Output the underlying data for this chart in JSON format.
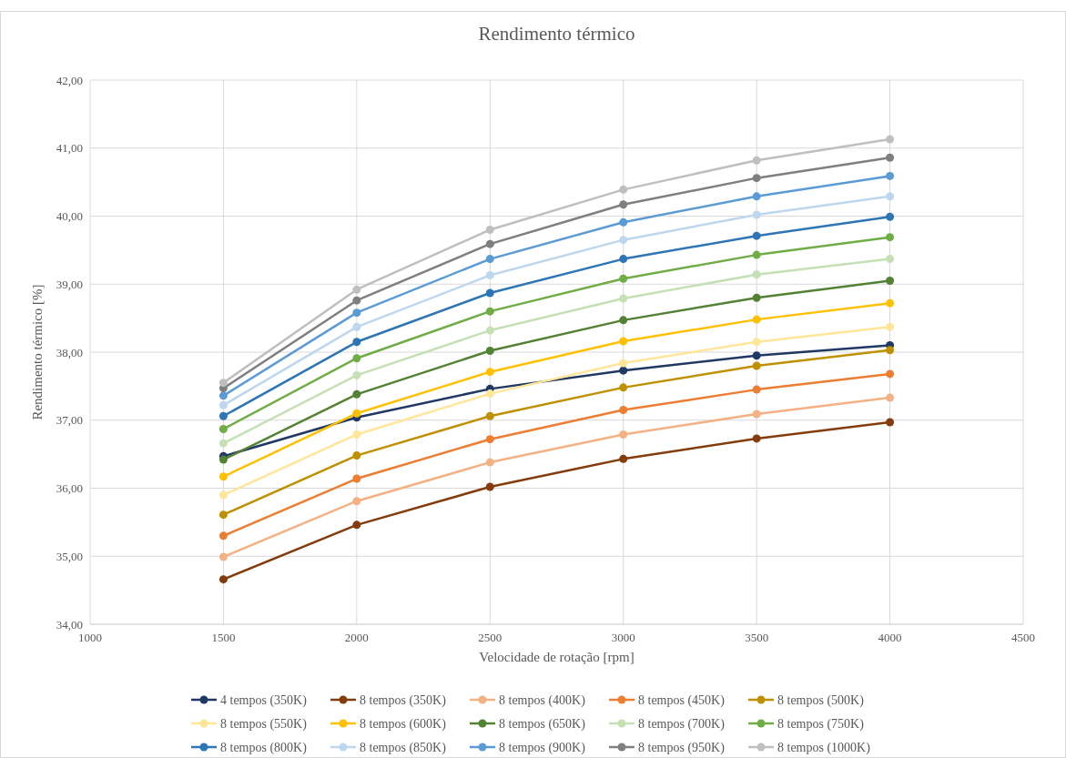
{
  "chart_data": {
    "type": "line",
    "title": "Rendimento térmico",
    "xlabel": "Velocidade de rotação [rpm]",
    "ylabel": "Rendimento térmico [%]",
    "x": [
      1500,
      2000,
      2500,
      3000,
      3500,
      4000
    ],
    "xlim": [
      1000,
      4500
    ],
    "xticks": [
      1000,
      1500,
      2000,
      2500,
      3000,
      3500,
      4000,
      4500
    ],
    "ylim": [
      34,
      42
    ],
    "yticks": [
      {
        "value": 34,
        "label": "34,00"
      },
      {
        "value": 35,
        "label": "35,00"
      },
      {
        "value": 36,
        "label": "36,00"
      },
      {
        "value": 37,
        "label": "37,00"
      },
      {
        "value": 38,
        "label": "38,00"
      },
      {
        "value": 39,
        "label": "39,00"
      },
      {
        "value": 40,
        "label": "40,00"
      },
      {
        "value": 41,
        "label": "41,00"
      },
      {
        "value": 42,
        "label": "42,00"
      }
    ],
    "grid": true,
    "legend": "bottom",
    "marker": "circle",
    "line_style": "solid",
    "series": [
      {
        "name": "4 tempos (350K)",
        "color": "#203864",
        "values": [
          36.47,
          37.04,
          37.46,
          37.73,
          37.95,
          38.1
        ]
      },
      {
        "name": "8 tempos (350K)",
        "color": "#843c0c",
        "values": [
          34.66,
          35.46,
          36.02,
          36.43,
          36.73,
          36.97
        ]
      },
      {
        "name": "8 tempos (400K)",
        "color": "#f4b183",
        "values": [
          34.99,
          35.81,
          36.38,
          36.79,
          37.09,
          37.33
        ]
      },
      {
        "name": "8 tempos (450K)",
        "color": "#ed7d31",
        "values": [
          35.3,
          36.14,
          36.72,
          37.15,
          37.45,
          37.68
        ]
      },
      {
        "name": "8 tempos (500K)",
        "color": "#bf9000",
        "values": [
          35.61,
          36.48,
          37.06,
          37.48,
          37.8,
          38.03
        ]
      },
      {
        "name": "8 tempos (550K)",
        "color": "#ffe699",
        "values": [
          35.9,
          36.79,
          37.39,
          37.84,
          38.15,
          38.37
        ]
      },
      {
        "name": "8 tempos (600K)",
        "color": "#ffc000",
        "values": [
          36.17,
          37.1,
          37.71,
          38.16,
          38.48,
          38.72
        ]
      },
      {
        "name": "8 tempos (650K)",
        "color": "#548235",
        "values": [
          36.42,
          37.38,
          38.02,
          38.47,
          38.8,
          39.05
        ]
      },
      {
        "name": "8 tempos (700K)",
        "color": "#c5e0b4",
        "values": [
          36.66,
          37.66,
          38.32,
          38.79,
          39.14,
          39.37
        ]
      },
      {
        "name": "8 tempos (750K)",
        "color": "#70ad47",
        "values": [
          36.87,
          37.91,
          38.6,
          39.08,
          39.43,
          39.69
        ]
      },
      {
        "name": "8 tempos (800K)",
        "color": "#2e75b6",
        "values": [
          37.06,
          38.15,
          38.87,
          39.37,
          39.71,
          39.99
        ]
      },
      {
        "name": "8 tempos (850K)",
        "color": "#bdd7ee",
        "values": [
          37.22,
          38.37,
          39.13,
          39.65,
          40.02,
          40.29
        ]
      },
      {
        "name": "8 tempos (900K)",
        "color": "#5b9bd5",
        "values": [
          37.36,
          38.58,
          39.37,
          39.91,
          40.29,
          40.59
        ]
      },
      {
        "name": "8 tempos (950K)",
        "color": "#7f7f7f",
        "values": [
          37.47,
          38.76,
          39.59,
          40.17,
          40.56,
          40.86
        ]
      },
      {
        "name": "8 tempos (1000K)",
        "color": "#bfbfbf",
        "values": [
          37.55,
          38.92,
          39.8,
          40.39,
          40.82,
          41.13
        ]
      }
    ]
  }
}
